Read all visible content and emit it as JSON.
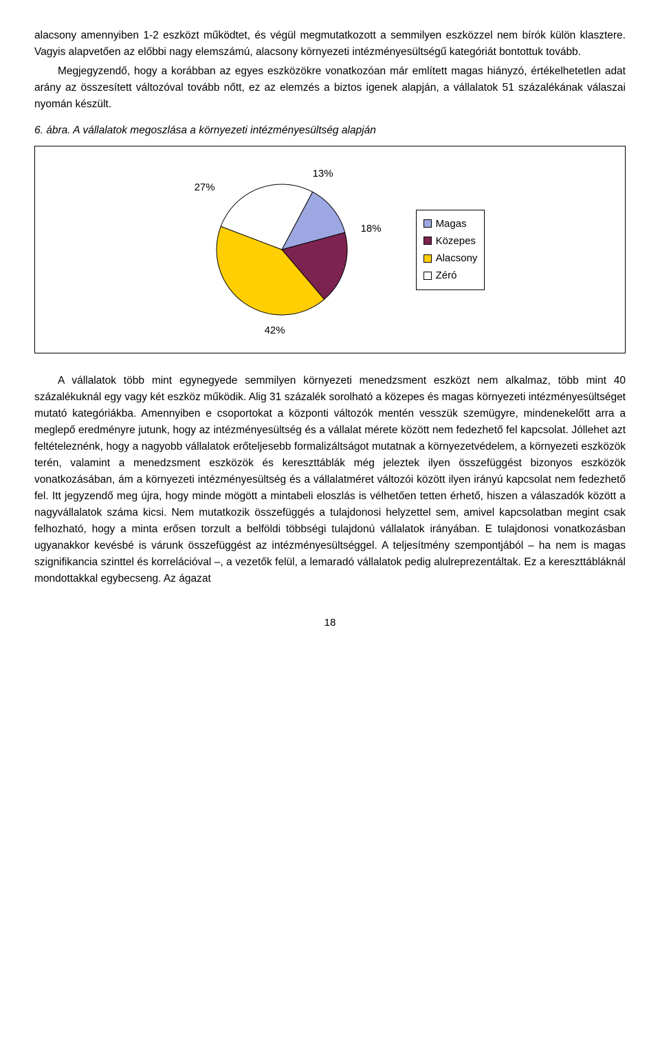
{
  "paragraphs": {
    "p1": "alacsony amennyiben 1-2 eszközt működtet, és végül megmutatkozott a semmilyen eszközzel nem bírók külön klasztere. Vagyis alapvetően az előbbi nagy elemszámú, alacsony környezeti intézményesültségű kategóriát bontottuk tovább.",
    "p2": "Megjegyzendő, hogy a korábban az egyes eszközökre vonatkozóan már említett magas hiányzó, értékelhetetlen adat arány az összesített változóval tovább nőtt, ez az elemzés a biztos igenek alapján, a vállalatok 51 százalékának válaszai nyomán készült.",
    "caption": "6. ábra. A vállalatok megoszlása a környezeti intézményesültség alapján",
    "p3": "A vállalatok több mint egynegyede semmilyen környezeti menedzsment eszközt nem alkalmaz, több mint 40 százalékuknál egy vagy két eszköz működik. Alig 31 százalék sorolható a közepes és magas környezeti intézményesültséget mutató kategóriákba. Amennyiben e csoportokat a központi változók mentén vesszük szemügyre, mindenekelőtt arra a meglepő eredményre jutunk, hogy az intézményesültség és a vállalat mérete között nem fedezhető fel kapcsolat. Jóllehet azt feltételeznénk, hogy a nagyobb vállalatok erőteljesebb formalizáltságot mutatnak a környezetvédelem, a környezeti eszközök terén, valamint a menedzsment eszközök és kereszttáblák még jeleztek ilyen összefüggést bizonyos eszközök vonatkozásában, ám a környezeti intézményesültség és a vállalatméret változói között ilyen irányú kapcsolat nem fedezhető fel. Itt jegyzendő meg újra, hogy minde mögött a mintabeli eloszlás is vélhetően tetten érhető, hiszen a válaszadók között a nagyvállalatok száma kicsi. Nem mutatkozik összefüggés a tulajdonosi helyzettel sem, amivel kapcsolatban megint csak felhozható, hogy a minta erősen torzult a belföldi többségi tulajdonú vállalatok irányában. E tulajdonosi vonatkozásban ugyanakkor kevésbé is várunk összefüggést az intézményesültséggel. A teljesítmény szempontjából – ha nem is magas szignifikancia szinttel és korrelációval –, a vezetők felül, a lemaradó vállalatok pedig alulreprezentáltak. Ez a kereszttábláknál mondottakkal egybecseng. Az ágazat"
  },
  "chart": {
    "type": "pie",
    "slices": [
      {
        "label": "Magas",
        "value": 13,
        "pct_label": "13%",
        "color": "#9da7e1"
      },
      {
        "label": "Közepes",
        "value": 18,
        "pct_label": "18%",
        "color": "#7c2350"
      },
      {
        "label": "Alacsony",
        "value": 42,
        "pct_label": "42%",
        "color": "#ffcf03"
      },
      {
        "label": "Zéró",
        "value": 27,
        "pct_label": "27%",
        "color": "#ffffff"
      }
    ],
    "legend_items": [
      "Magas",
      "Közepes",
      "Alacsony",
      "Zéró"
    ],
    "legend_colors": [
      "#9da7e1",
      "#7c2350",
      "#ffcf03",
      "#ffffff"
    ],
    "border_color": "#000000",
    "background_color": "#ffffff",
    "start_angle_deg": -62,
    "radius": 95,
    "font_size": 15
  },
  "page_number": "18"
}
